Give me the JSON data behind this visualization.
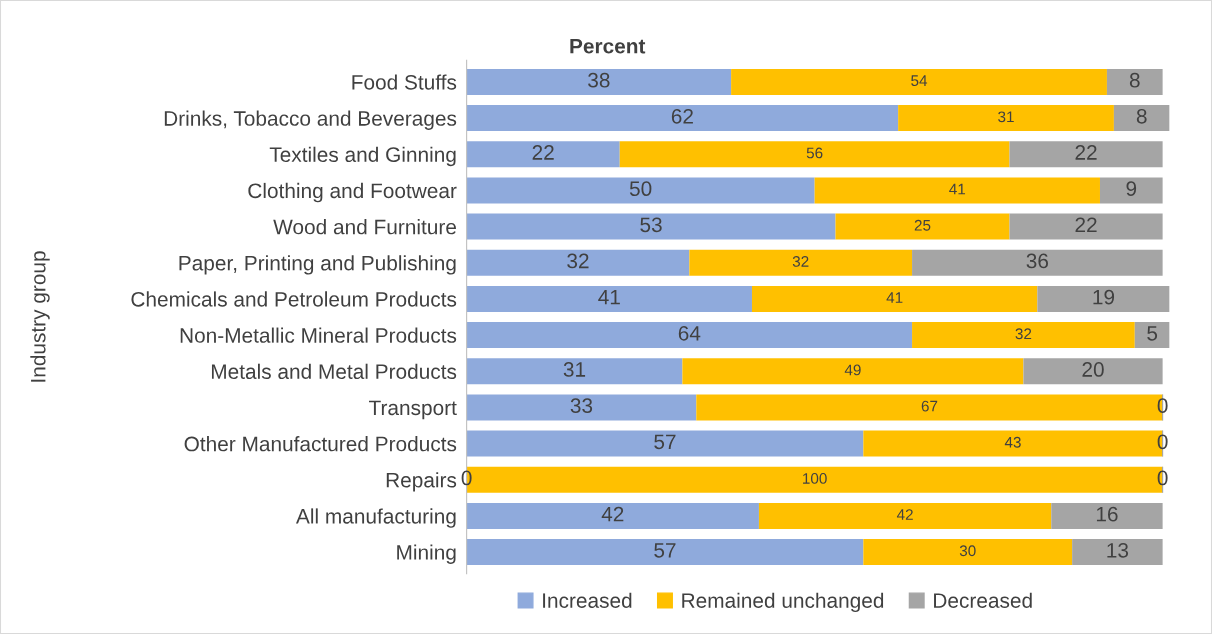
{
  "chart_data": {
    "type": "bar",
    "orientation": "horizontal",
    "stacked": true,
    "title": "Percent",
    "ylabel": "Industry group",
    "categories": [
      "Food Stuffs",
      "Drinks, Tobacco and Beverages",
      "Textiles and Ginning",
      "Clothing and Footwear",
      "Wood and Furniture",
      "Paper, Printing and Publishing",
      "Chemicals and Petroleum Products",
      "Non-Metallic Mineral Products",
      "Metals and Metal Products",
      "Transport",
      "Other Manufactured Products",
      "Repairs",
      "All manufacturing",
      "Mining"
    ],
    "series": [
      {
        "name": "Increased",
        "color": "#8faadc",
        "values": [
          38,
          62,
          22,
          50,
          53,
          32,
          41,
          64,
          31,
          33,
          57,
          0,
          42,
          57
        ],
        "value_labels": [
          "38",
          "62",
          "22",
          "50",
          "53",
          "32",
          "41",
          "64",
          "31",
          "33",
          "57",
          "0",
          "42",
          "57"
        ]
      },
      {
        "name": "Remained unchanged",
        "color": "#ffc000",
        "values": [
          54,
          31,
          56,
          41,
          25,
          32,
          41,
          32,
          49,
          67,
          43,
          100,
          42,
          30
        ],
        "value_labels": [
          "54",
          "31",
          "56",
          "41",
          "25",
          "32",
          "41",
          "32",
          "49",
          "67",
          "43",
          "100",
          "42",
          "30"
        ]
      },
      {
        "name": "Decreased",
        "color": "#a5a5a5",
        "values": [
          8,
          8,
          22,
          9,
          22,
          36,
          19,
          5,
          20,
          0,
          0,
          0,
          16,
          13
        ],
        "value_labels": [
          "8",
          "8",
          "22",
          "9",
          "22",
          "36",
          "19",
          "5",
          "20",
          "0",
          "0",
          "0",
          "16",
          "13"
        ]
      }
    ],
    "legend": "bottom",
    "grid": false,
    "tick_labels": "y"
  }
}
